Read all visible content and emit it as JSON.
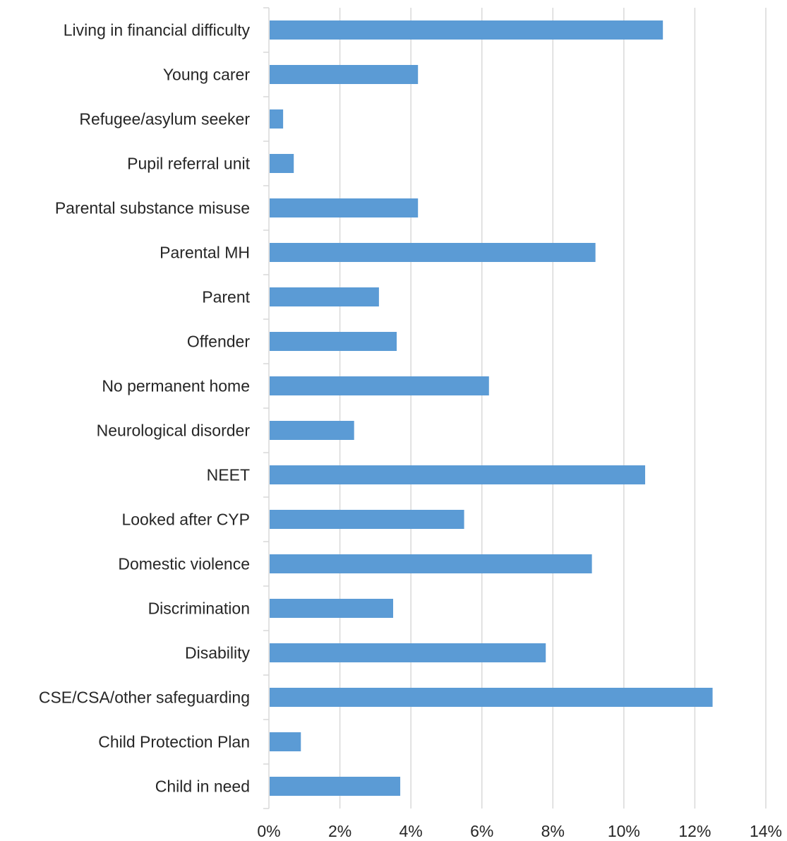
{
  "chart_data": {
    "type": "bar",
    "orientation": "horizontal",
    "categories": [
      "Living in financial difficulty",
      "Young carer",
      "Refugee/asylum seeker",
      "Pupil referral unit",
      "Parental substance misuse",
      "Parental MH",
      "Parent",
      "Offender",
      "No permanent home",
      "Neurological disorder",
      "NEET",
      "Looked after CYP",
      "Domestic violence",
      "Discrimination",
      "Disability",
      "CSE/CSA/other safeguarding",
      "Child Protection Plan",
      "Child in need"
    ],
    "values": [
      11.1,
      4.2,
      0.4,
      0.7,
      4.2,
      9.2,
      3.1,
      3.6,
      6.2,
      2.4,
      10.6,
      5.5,
      9.1,
      3.5,
      7.8,
      12.5,
      0.9,
      3.7
    ],
    "xlim": [
      0,
      14
    ],
    "xticks": [
      "0%",
      "2%",
      "4%",
      "6%",
      "8%",
      "10%",
      "12%",
      "14%"
    ],
    "grid": "vertical",
    "bar_color": "#5b9bd5",
    "title": "",
    "xlabel": "",
    "ylabel": ""
  }
}
